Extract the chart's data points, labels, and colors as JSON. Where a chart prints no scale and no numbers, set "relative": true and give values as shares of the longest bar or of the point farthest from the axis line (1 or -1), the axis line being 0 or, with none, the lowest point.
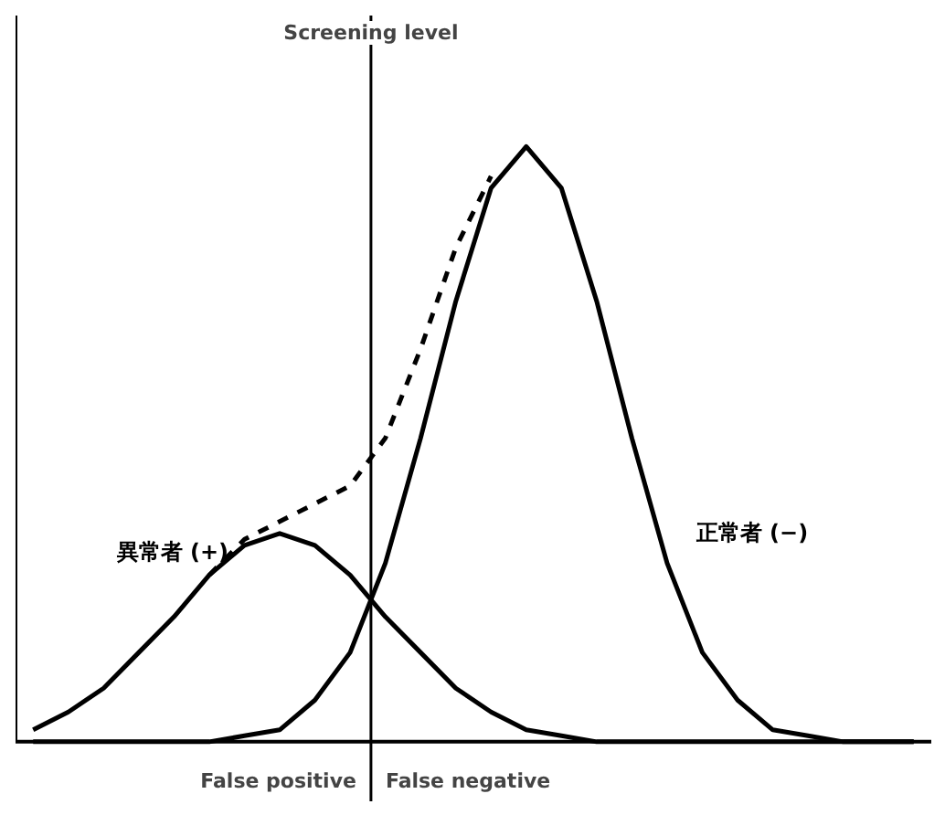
{
  "chart_data": {
    "type": "line",
    "relative": true,
    "categories": [
      null,
      null,
      null,
      null,
      null,
      null,
      null,
      null,
      null,
      null,
      null,
      null,
      null,
      null,
      null,
      null,
      null,
      null,
      null,
      null,
      null,
      null,
      null,
      null,
      null,
      null
    ],
    "series": [
      {
        "name": "異常者 (+)",
        "color": "#000000",
        "line_style": "solid",
        "values": [
          0.02,
          0.05,
          0.09,
          0.15,
          0.21,
          0.28,
          0.33,
          0.35,
          0.33,
          0.28,
          0.21,
          0.15,
          0.09,
          0.05,
          0.02,
          0.01,
          0,
          0,
          0,
          0,
          0,
          0,
          0,
          0,
          0,
          0
        ]
      },
      {
        "name": "正常者 (−)",
        "color": "#000000",
        "line_style": "solid",
        "values": [
          0,
          0,
          0,
          0,
          0,
          0,
          0.01,
          0.02,
          0.07,
          0.15,
          0.3,
          0.51,
          0.74,
          0.93,
          1,
          0.93,
          0.74,
          0.51,
          0.3,
          0.15,
          0.07,
          0.02,
          0.01,
          0,
          0,
          0
        ]
      },
      {
        "color": "#000000",
        "line_style": "dashed",
        "values": [
          null,
          null,
          null,
          null,
          null,
          0.28,
          0.34,
          0.37,
          0.4,
          0.43,
          0.51,
          0.66,
          0.83,
          0.95,
          null,
          null,
          null,
          null,
          null,
          null,
          null,
          null,
          null,
          null,
          null,
          null
        ]
      }
    ],
    "ref_lines": [
      {
        "axis": "x",
        "label": "Screening level",
        "color": "#000000"
      }
    ],
    "annotations": [
      "False positive",
      "False negative"
    ]
  }
}
